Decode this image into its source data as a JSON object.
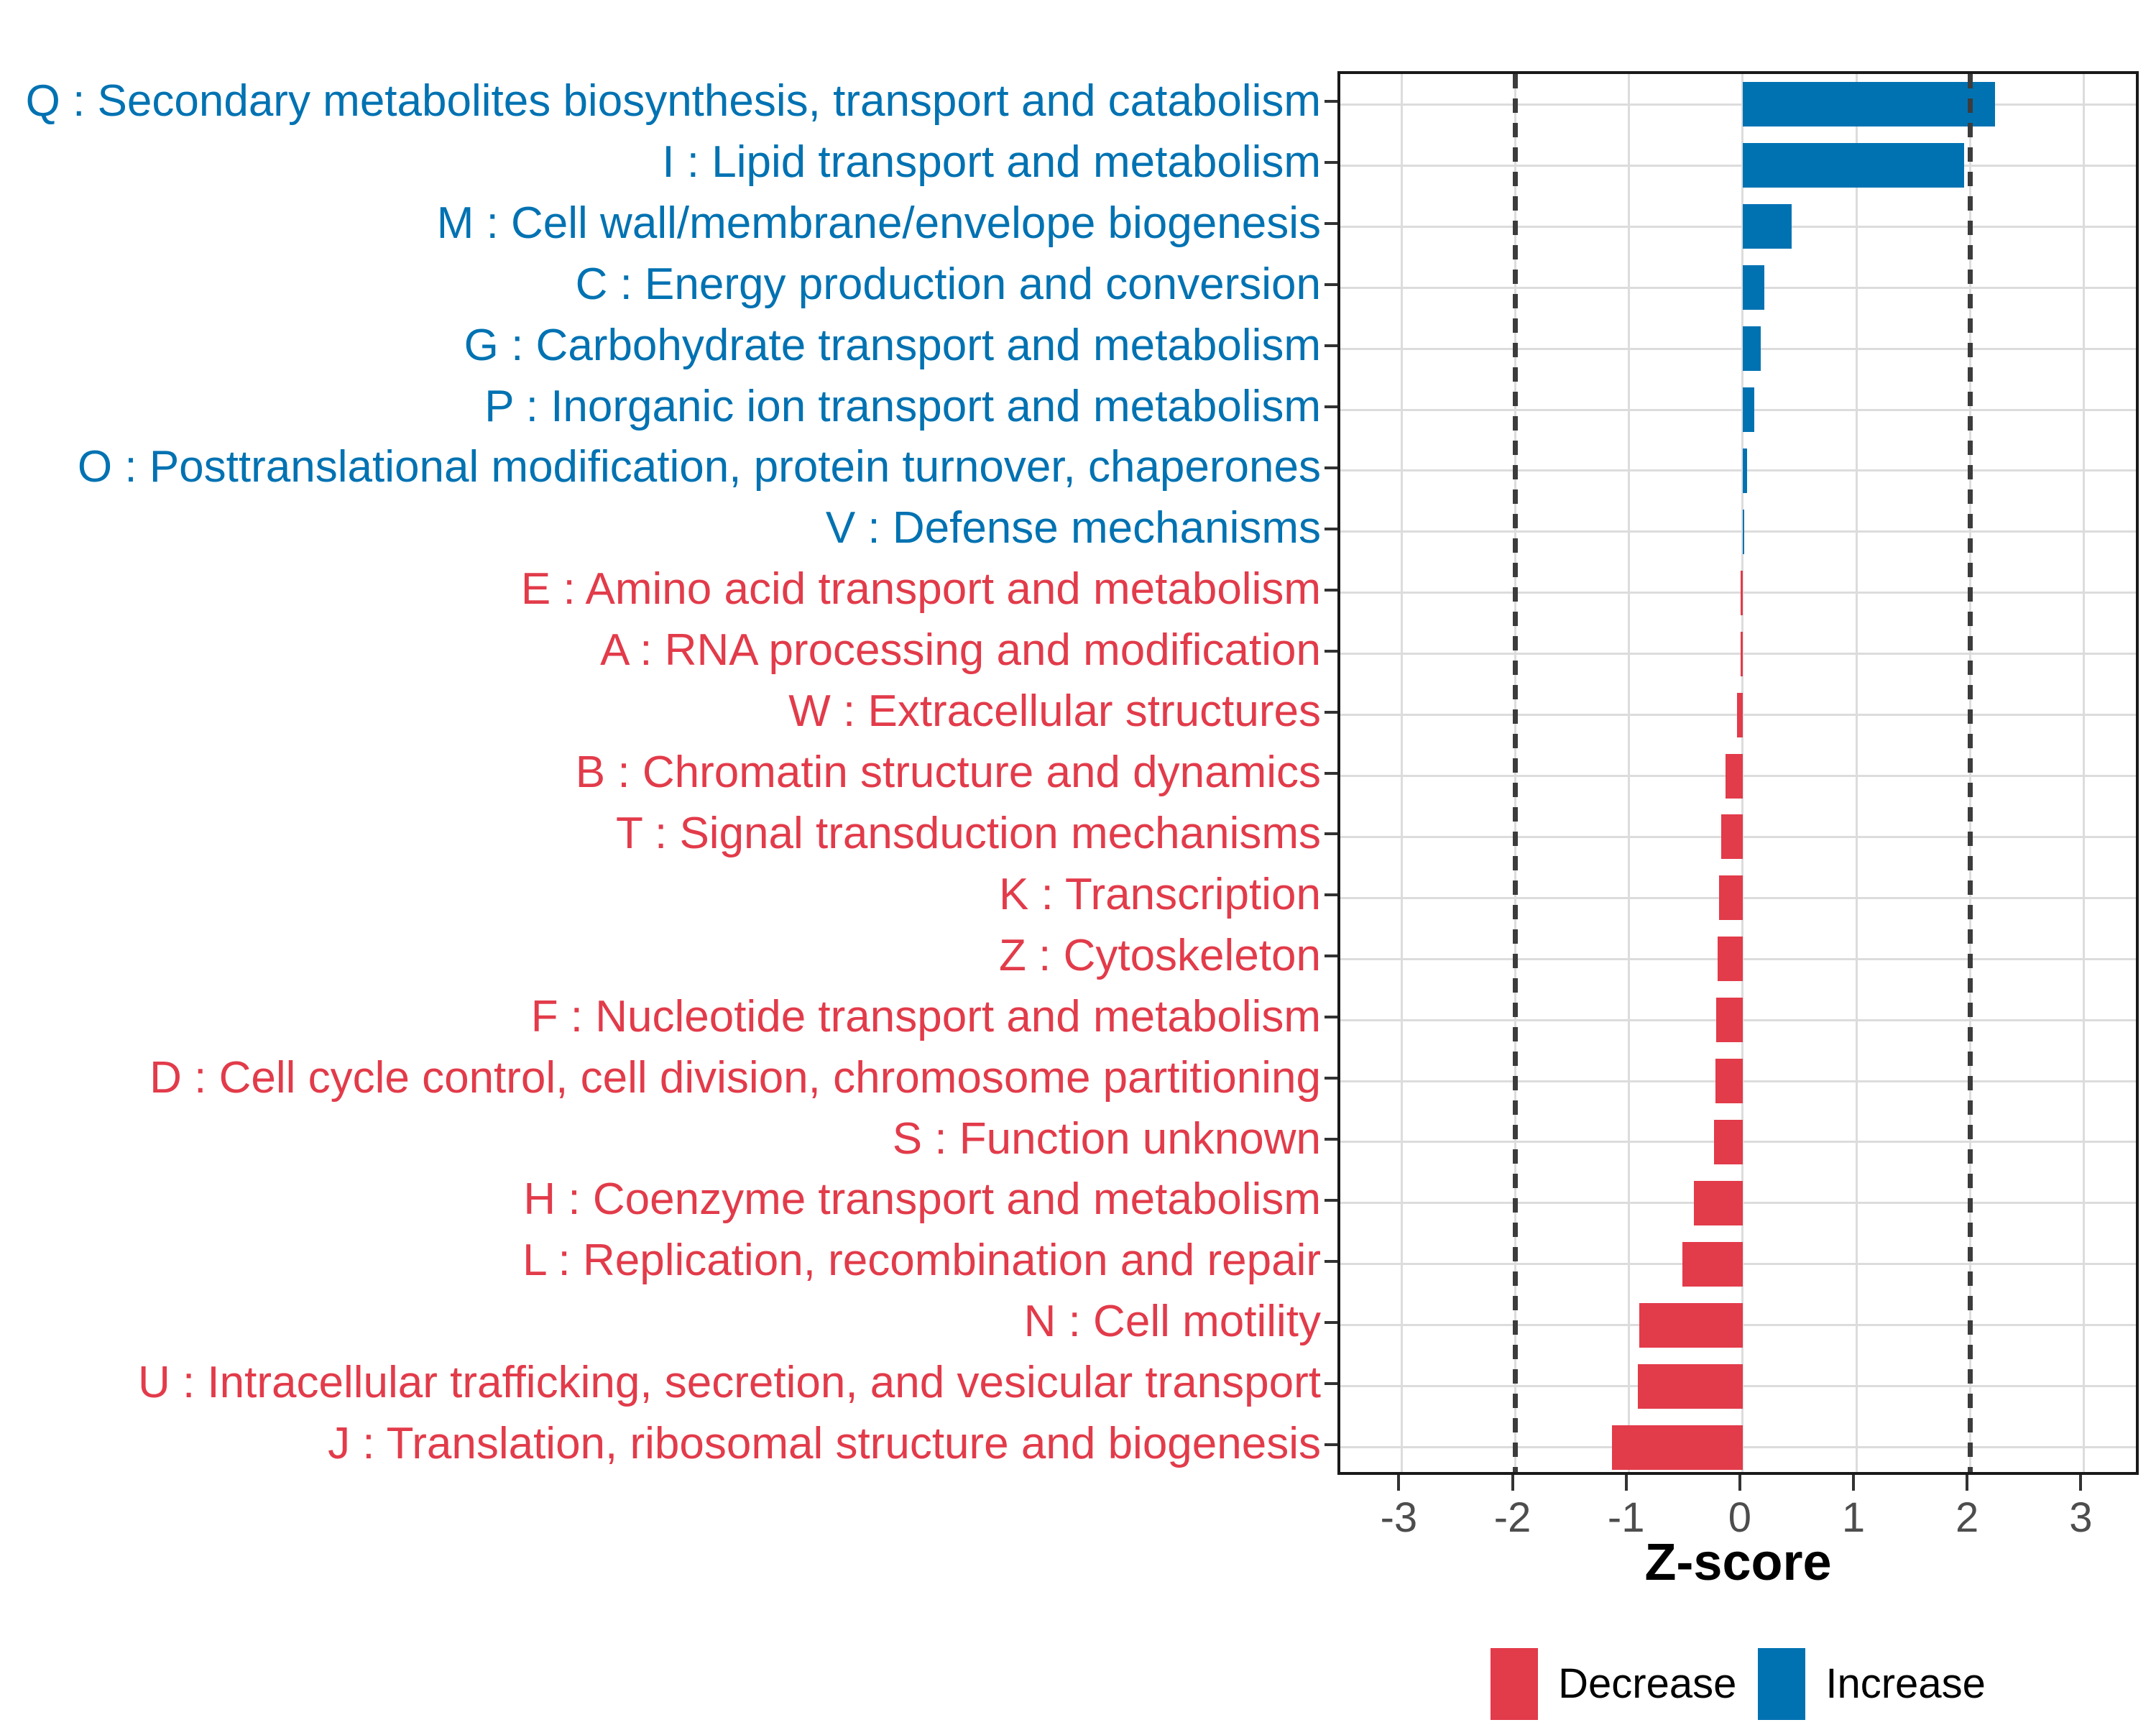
{
  "colors": {
    "increase": "#0072B2",
    "decrease": "#E23B4A",
    "grid": "#DCDCDC",
    "axis_text": "#4D4D4D",
    "panel_border": "#1A1A1A",
    "threshold_line": "#3C3C3C",
    "tick_mark": "#333333"
  },
  "chart_data": {
    "type": "bar",
    "orientation": "horizontal",
    "title": "",
    "xlabel": "Z-score",
    "ylabel": "",
    "xlim": [
      -3.54,
      3.51
    ],
    "x_ticks": [
      -3,
      -2,
      -1,
      0,
      1,
      2,
      3
    ],
    "threshold_lines": [
      -2,
      2
    ],
    "grid": true,
    "legend_position": "bottom",
    "legend": {
      "items": [
        {
          "label": "Decrease",
          "color": "#E23B4A"
        },
        {
          "label": "Increase",
          "color": "#0072B2"
        }
      ]
    },
    "categories": [
      "Q : Secondary metabolites biosynthesis, transport and catabolism",
      "I : Lipid transport and metabolism",
      "M : Cell wall/membrane/envelope biogenesis",
      "C : Energy production and conversion",
      "G : Carbohydrate transport and metabolism",
      "P : Inorganic ion transport and metabolism",
      "O : Posttranslational modification, protein turnover, chaperones",
      "V : Defense mechanisms",
      "E : Amino acid transport and metabolism",
      "A : RNA processing and modification",
      "W : Extracellular structures",
      "B : Chromatin structure and dynamics",
      "T : Signal transduction mechanisms",
      "K : Transcription",
      "Z : Cytoskeleton",
      "F : Nucleotide transport and metabolism",
      "D : Cell cycle control, cell division, chromosome partitioning",
      "S : Function unknown",
      "H : Coenzyme transport and metabolism",
      "L : Replication, recombination and repair",
      "N : Cell motility",
      "U : Intracellular trafficking, secretion, and vesicular transport",
      "J : Translation, ribosomal structure and biogenesis"
    ],
    "values": [
      2.22,
      1.95,
      0.43,
      0.19,
      0.16,
      0.1,
      0.04,
      0.01,
      -0.01,
      -0.01,
      -0.05,
      -0.15,
      -0.19,
      -0.21,
      -0.22,
      -0.23,
      -0.24,
      -0.25,
      -0.43,
      -0.53,
      -0.91,
      -0.92,
      -1.15
    ],
    "groups": [
      "Increase",
      "Increase",
      "Increase",
      "Increase",
      "Increase",
      "Increase",
      "Increase",
      "Increase",
      "Decrease",
      "Decrease",
      "Decrease",
      "Decrease",
      "Decrease",
      "Decrease",
      "Decrease",
      "Decrease",
      "Decrease",
      "Decrease",
      "Decrease",
      "Decrease",
      "Decrease",
      "Decrease",
      "Decrease"
    ]
  }
}
